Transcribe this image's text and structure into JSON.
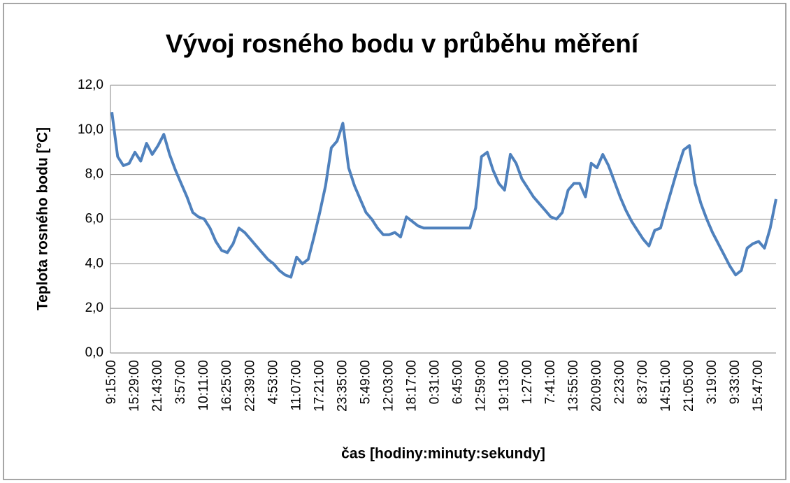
{
  "chart_data": {
    "type": "line",
    "title": "Vývoj rosného bodu v průběhu měření",
    "y_label": "Teplota rosného bodu [°C]",
    "x_label": "čas [hodiny:minuty:sekundy]",
    "categories": [
      "9:15:00",
      null,
      null,
      null,
      "15:29:00",
      null,
      null,
      null,
      "21:43:00",
      null,
      null,
      null,
      "3:57:00",
      null,
      null,
      null,
      "10:11:00",
      null,
      null,
      null,
      "16:25:00",
      null,
      null,
      null,
      "22:39:00",
      null,
      null,
      null,
      "4:53:00",
      null,
      null,
      null,
      "11:07:00",
      null,
      null,
      null,
      "17:21:00",
      null,
      null,
      null,
      "23:35:00",
      null,
      null,
      null,
      "5:49:00",
      null,
      null,
      null,
      "12:03:00",
      null,
      null,
      null,
      "18:17:00",
      null,
      null,
      null,
      "0:31:00",
      null,
      null,
      null,
      "6:45:00",
      null,
      null,
      null,
      "12:59:00",
      null,
      null,
      null,
      "19:13:00",
      null,
      null,
      null,
      "1:27:00",
      null,
      null,
      null,
      "7:41:00",
      null,
      null,
      null,
      "13:55:00",
      null,
      null,
      null,
      "20:09:00",
      null,
      null,
      null,
      "2:23:00",
      null,
      null,
      null,
      "8:37:00",
      null,
      null,
      null,
      "14:51:00",
      null,
      null,
      null,
      "21:05:00",
      null,
      null,
      null,
      "3:19:00",
      null,
      null,
      null,
      "9:33:00",
      null,
      null,
      null,
      "15:47:00",
      null,
      null,
      null
    ],
    "series": [
      {
        "name": "Teplota rosného bodu",
        "color": "#4f81bd",
        "values": [
          10.8,
          8.8,
          8.4,
          8.5,
          9.0,
          8.6,
          9.4,
          8.9,
          9.3,
          9.8,
          8.9,
          8.2,
          7.6,
          7.0,
          6.3,
          6.1,
          6.0,
          5.6,
          5.0,
          4.6,
          4.5,
          4.9,
          5.6,
          5.4,
          5.1,
          4.8,
          4.5,
          4.2,
          4.0,
          3.7,
          3.5,
          3.4,
          4.3,
          4.0,
          4.2,
          5.2,
          6.3,
          7.5,
          9.2,
          9.5,
          10.3,
          8.3,
          7.5,
          6.9,
          6.3,
          6.0,
          5.6,
          5.3,
          5.3,
          5.4,
          5.2,
          6.1,
          5.9,
          5.7,
          5.6,
          5.6,
          5.6,
          5.6,
          5.6,
          5.6,
          5.6,
          5.6,
          5.6,
          6.5,
          8.8,
          9.0,
          8.2,
          7.6,
          7.3,
          8.9,
          8.5,
          7.8,
          7.4,
          7.0,
          6.7,
          6.4,
          6.1,
          6.0,
          6.3,
          7.3,
          7.6,
          7.6,
          7.0,
          8.5,
          8.3,
          8.9,
          8.4,
          7.7,
          7.0,
          6.4,
          5.9,
          5.5,
          5.1,
          4.8,
          5.5,
          5.6,
          6.5,
          7.4,
          8.3,
          9.1,
          9.3,
          7.6,
          6.7,
          6.0,
          5.4,
          4.9,
          4.4,
          3.9,
          3.5,
          3.7,
          4.7,
          4.9,
          5.0,
          4.7,
          5.6,
          6.9
        ]
      }
    ],
    "ylim": [
      0,
      12
    ],
    "yticks": [
      {
        "value": 0,
        "label": "0,0"
      },
      {
        "value": 2,
        "label": "2,0"
      },
      {
        "value": 4,
        "label": "4,0"
      },
      {
        "value": 6,
        "label": "6,0"
      },
      {
        "value": 8,
        "label": "8,0"
      },
      {
        "value": 10,
        "label": "10,0"
      },
      {
        "value": 12,
        "label": "12,0"
      }
    ],
    "grid": true
  }
}
